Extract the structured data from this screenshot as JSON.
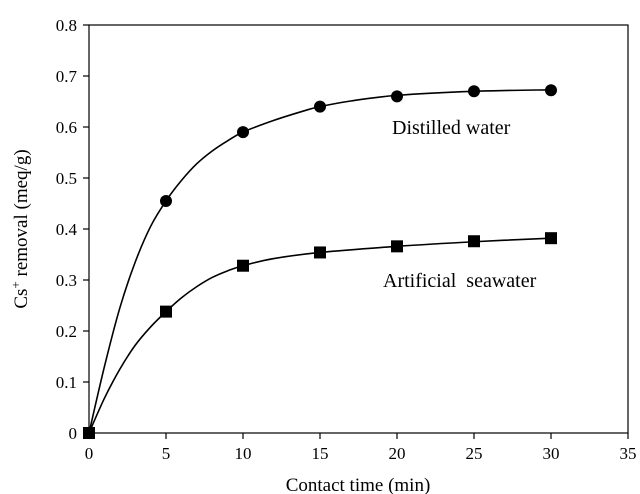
{
  "chart_data": {
    "type": "scatter",
    "title": "",
    "xlabel": "Contact time (min)",
    "ylabel_main": "Cs",
    "ylabel_sup": "+",
    "ylabel_rest": " removal (meq/g)",
    "xlim": [
      0,
      35
    ],
    "ylim": [
      0,
      0.8
    ],
    "xticks": [
      "0",
      "5",
      "10",
      "15",
      "20",
      "25",
      "30",
      "35"
    ],
    "yticks": [
      "0",
      "0.1",
      "0.2",
      "0.3",
      "0.4",
      "0.5",
      "0.6",
      "0.7",
      "0.8"
    ],
    "grid": false,
    "series": [
      {
        "name": "Distilled water",
        "marker": "circle",
        "x": [
          0,
          5,
          10,
          15,
          20,
          25,
          30
        ],
        "y": [
          0,
          0.455,
          0.59,
          0.64,
          0.66,
          0.67,
          0.672
        ],
        "fit": [
          [
            0,
            0
          ],
          [
            1,
            0.13
          ],
          [
            2,
            0.245
          ],
          [
            3,
            0.335
          ],
          [
            4,
            0.405
          ],
          [
            5,
            0.455
          ],
          [
            6,
            0.495
          ],
          [
            7,
            0.528
          ],
          [
            8,
            0.553
          ],
          [
            9,
            0.573
          ],
          [
            10,
            0.59
          ],
          [
            12,
            0.613
          ],
          [
            14,
            0.632
          ],
          [
            15,
            0.64
          ],
          [
            17,
            0.651
          ],
          [
            20,
            0.662
          ],
          [
            25,
            0.67
          ],
          [
            30,
            0.673
          ]
        ]
      },
      {
        "name": "Artificial  seawater",
        "marker": "square",
        "x": [
          0,
          5,
          10,
          15,
          20,
          25,
          30
        ],
        "y": [
          0,
          0.238,
          0.328,
          0.354,
          0.366,
          0.376,
          0.382
        ],
        "fit": [
          [
            0,
            0
          ],
          [
            1,
            0.068
          ],
          [
            2,
            0.125
          ],
          [
            3,
            0.172
          ],
          [
            4,
            0.208
          ],
          [
            5,
            0.238
          ],
          [
            6,
            0.265
          ],
          [
            7,
            0.287
          ],
          [
            8,
            0.305
          ],
          [
            9,
            0.318
          ],
          [
            10,
            0.328
          ],
          [
            12,
            0.342
          ],
          [
            15,
            0.354
          ],
          [
            20,
            0.366
          ],
          [
            25,
            0.375
          ],
          [
            30,
            0.382
          ]
        ]
      }
    ]
  }
}
